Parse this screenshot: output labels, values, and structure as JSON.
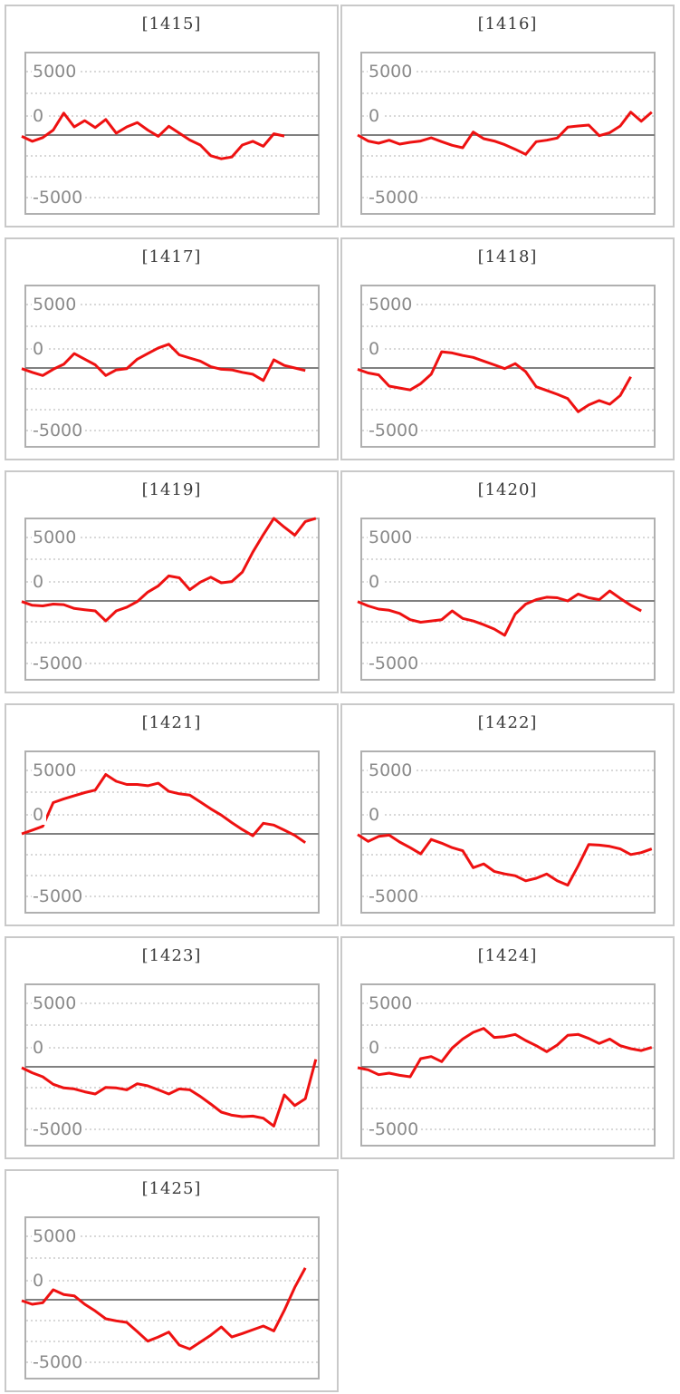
{
  "axis": {
    "labels": [
      "5000",
      "0",
      "-5000"
    ],
    "tick_values": [
      5000,
      0,
      -5000
    ]
  },
  "style": {
    "line_color": "#ee1111",
    "zero_line_color": "#808080",
    "gridline_color": "#cccccc",
    "plot_border_color": "#b0b0b0",
    "tile_border_color": "#c9c9c9",
    "title_color": "#3a3a3a",
    "label_color": "#8a8a8a",
    "background": "#ffffff"
  },
  "chart_data": [
    {
      "type": "line",
      "title": "[1415]",
      "machine": 1415,
      "yticks": [
        5000,
        0,
        -5000
      ],
      "ylim": [
        -6600,
        6600
      ],
      "grid": true,
      "values": [
        -100,
        -500,
        -200,
        400,
        1750,
        650,
        1150,
        600,
        1250,
        150,
        650,
        1000,
        400,
        -100,
        700,
        150,
        -400,
        -800,
        -1650,
        -1900,
        -1750,
        -800,
        -500,
        -900,
        100,
        -80
      ]
    },
    {
      "type": "line",
      "title": "[1416]",
      "machine": 1416,
      "yticks": [
        5000,
        0,
        -5000
      ],
      "ylim": [
        -6600,
        6600
      ],
      "grid": true,
      "values": [
        0,
        -480,
        -650,
        -410,
        -725,
        -580,
        -480,
        -220,
        -530,
        -820,
        -1015,
        240,
        -290,
        -480,
        -770,
        -1135,
        -1545,
        -530,
        -410,
        -240,
        630,
        725,
        800,
        -50,
        190,
        725,
        1835,
        1100,
        1835
      ]
    },
    {
      "type": "line",
      "title": "[1417]",
      "machine": 1417,
      "yticks": [
        5000,
        0,
        -5000
      ],
      "ylim": [
        -6600,
        6600
      ],
      "grid": true,
      "values": [
        -50,
        -350,
        -600,
        -100,
        300,
        1150,
        700,
        250,
        -600,
        -150,
        -50,
        700,
        1150,
        1600,
        1900,
        1050,
        800,
        550,
        100,
        -100,
        -150,
        -350,
        -500,
        -1000,
        650,
        200,
        0,
        -200
      ]
    },
    {
      "type": "line",
      "title": "[1418]",
      "machine": 1418,
      "yticks": [
        5000,
        0,
        -5000
      ],
      "ylim": [
        -6600,
        6600
      ],
      "grid": true,
      "values": [
        -100,
        -400,
        -550,
        -1450,
        -1600,
        -1750,
        -1250,
        -500,
        1300,
        1200,
        1000,
        850,
        550,
        250,
        -50,
        350,
        -300,
        -1500,
        -1800,
        -2100,
        -2450,
        -3500,
        -2950,
        -2600,
        -2900,
        -2200,
        -700
      ]
    },
    {
      "type": "line",
      "title": "[1419]",
      "machine": 1419,
      "yticks": [
        5000,
        0,
        -5000
      ],
      "ylim": [
        -6600,
        6600
      ],
      "grid": true,
      "values": [
        -50,
        -350,
        -400,
        -250,
        -300,
        -600,
        -700,
        -800,
        -1600,
        -800,
        -500,
        -50,
        700,
        1200,
        2000,
        1850,
        900,
        1500,
        1900,
        1450,
        1550,
        2300,
        3900,
        5300,
        6600,
        5900,
        5250,
        6350,
        6600
      ]
    },
    {
      "type": "line",
      "title": "[1420]",
      "machine": 1420,
      "yticks": [
        5000,
        0,
        -5000
      ],
      "ylim": [
        -6600,
        6600
      ],
      "grid": true,
      "values": [
        -50,
        -400,
        -650,
        -750,
        -1000,
        -1500,
        -1700,
        -1600,
        -1500,
        -800,
        -1400,
        -1600,
        -1900,
        -2250,
        -2750,
        -1050,
        -250,
        100,
        300,
        250,
        0,
        550,
        250,
        100,
        800,
        200,
        -350,
        -800
      ]
    },
    {
      "type": "line",
      "title": "[1421]",
      "machine": 1421,
      "yticks": [
        5000,
        0,
        -5000
      ],
      "ylim": [
        -6600,
        6600
      ],
      "grid": true,
      "values": [
        0,
        300,
        600,
        2500,
        2800,
        3050,
        3300,
        3500,
        4750,
        4200,
        3950,
        3950,
        3850,
        4050,
        3400,
        3200,
        3100,
        2550,
        2000,
        1500,
        900,
        350,
        -150,
        850,
        700,
        300,
        -120,
        -700
      ]
    },
    {
      "type": "line",
      "title": "[1422]",
      "machine": 1422,
      "yticks": [
        5000,
        0,
        -5000
      ],
      "ylim": [
        -6600,
        6600
      ],
      "grid": true,
      "values": [
        -50,
        -600,
        -200,
        -100,
        -650,
        -1100,
        -1600,
        -450,
        -750,
        -1100,
        -1350,
        -2700,
        -2400,
        -3000,
        -3200,
        -3350,
        -3750,
        -3550,
        -3200,
        -3750,
        -4100,
        -2550,
        -850,
        -900,
        -1000,
        -1200,
        -1650,
        -1500,
        -1200
      ]
    },
    {
      "type": "line",
      "title": "[1423]",
      "machine": 1423,
      "yticks": [
        5000,
        0,
        -5000
      ],
      "ylim": [
        -6600,
        6600
      ],
      "grid": true,
      "values": [
        -70,
        -480,
        -800,
        -1400,
        -1690,
        -1765,
        -2000,
        -2175,
        -1645,
        -1690,
        -1840,
        -1355,
        -1520,
        -1840,
        -2175,
        -1765,
        -1840,
        -2370,
        -2975,
        -3625,
        -3870,
        -3985,
        -3940,
        -4110,
        -4740,
        -2250,
        -3100,
        -2550,
        600
      ]
    },
    {
      "type": "line",
      "title": "[1424]",
      "machine": 1424,
      "yticks": [
        5000,
        0,
        -5000
      ],
      "ylim": [
        -6600,
        6600
      ],
      "grid": true,
      "values": [
        -70,
        -240,
        -630,
        -510,
        -680,
        -800,
        650,
        820,
        410,
        1500,
        2220,
        2755,
        3070,
        2345,
        2415,
        2585,
        2100,
        1690,
        1210,
        1740,
        2515,
        2585,
        2270,
        1860,
        2220,
        1690,
        1450,
        1300,
        1550
      ]
    },
    {
      "type": "line",
      "title": "[1425]",
      "machine": 1425,
      "yticks": [
        5000,
        0,
        -5000
      ],
      "ylim": [
        -6600,
        6600
      ],
      "grid": true,
      "values": [
        -70,
        -360,
        -240,
        800,
        410,
        310,
        -360,
        -900,
        -1520,
        -1690,
        -1815,
        -2540,
        -3310,
        -2975,
        -2585,
        -3625,
        -3940,
        -3385,
        -2830,
        -2175,
        -2975,
        -2700,
        -2400,
        -2100,
        -2490,
        -845,
        1000,
        2540
      ]
    }
  ]
}
